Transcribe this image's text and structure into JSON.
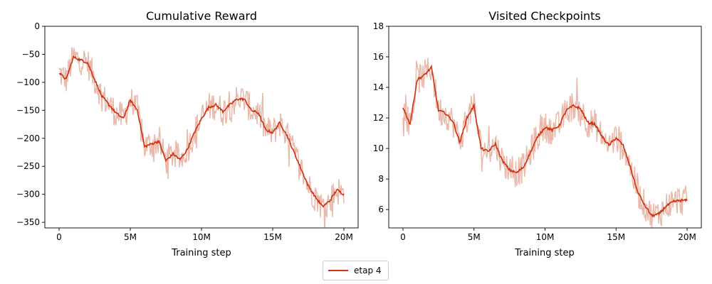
{
  "colors": {
    "raw": "#ebb9ab",
    "smooth": "#cc3311"
  },
  "legend": {
    "label": "etap 4",
    "position": "bottom-center"
  },
  "chart_data": [
    {
      "type": "line",
      "title": "Cumulative Reward",
      "xlabel": "Training step",
      "ylabel": "",
      "xlim": [
        -1000000,
        21000000
      ],
      "ylim": [
        -360,
        0
      ],
      "xticks": [
        0,
        5000000,
        10000000,
        15000000,
        20000000
      ],
      "xticklabels": [
        "0",
        "5M",
        "10M",
        "15M",
        "20M"
      ],
      "yticks": [
        0,
        -50,
        -100,
        -150,
        -200,
        -250,
        -300,
        -350
      ],
      "yticklabels": [
        "0",
        "−50",
        "−100",
        "−150",
        "−200",
        "−250",
        "−300",
        "−350"
      ],
      "grid": false,
      "series": [
        {
          "name": "etap 4",
          "x": [
            0,
            500000,
            1000000,
            1500000,
            2000000,
            2500000,
            3000000,
            3500000,
            4000000,
            4500000,
            5000000,
            5500000,
            6000000,
            6500000,
            7000000,
            7500000,
            8000000,
            8500000,
            9000000,
            9500000,
            10000000,
            10500000,
            11000000,
            11500000,
            12000000,
            12500000,
            13000000,
            13500000,
            14000000,
            14500000,
            15000000,
            15500000,
            16000000,
            16500000,
            17000000,
            17500000,
            18000000,
            18500000,
            19000000,
            19500000,
            20000000
          ],
          "values": [
            -83,
            -95,
            -55,
            -60,
            -65,
            -95,
            -125,
            -140,
            -155,
            -165,
            -132,
            -150,
            -215,
            -210,
            -205,
            -240,
            -228,
            -238,
            -220,
            -190,
            -165,
            -145,
            -140,
            -152,
            -140,
            -130,
            -130,
            -150,
            -155,
            -185,
            -190,
            -172,
            -195,
            -225,
            -255,
            -285,
            -305,
            -322,
            -312,
            -292,
            -300
          ]
        }
      ]
    },
    {
      "type": "line",
      "title": "Visited Checkpoints",
      "xlabel": "Training step",
      "ylabel": "",
      "xlim": [
        -1000000,
        21000000
      ],
      "ylim": [
        4.8,
        18
      ],
      "xticks": [
        0,
        5000000,
        10000000,
        15000000,
        20000000
      ],
      "xticklabels": [
        "0",
        "5M",
        "10M",
        "15M",
        "20M"
      ],
      "yticks": [
        6,
        8,
        10,
        12,
        14,
        16,
        18
      ],
      "yticklabels": [
        "6",
        "8",
        "10",
        "12",
        "14",
        "16",
        "18"
      ],
      "grid": false,
      "series": [
        {
          "name": "etap 4",
          "x": [
            0,
            500000,
            1000000,
            1500000,
            2000000,
            2500000,
            3000000,
            3500000,
            4000000,
            4500000,
            5000000,
            5500000,
            6000000,
            6500000,
            7000000,
            7500000,
            8000000,
            8500000,
            9000000,
            9500000,
            10000000,
            10500000,
            11000000,
            11500000,
            12000000,
            12500000,
            13000000,
            13500000,
            14000000,
            14500000,
            15000000,
            15500000,
            16000000,
            16500000,
            17000000,
            17500000,
            18000000,
            18500000,
            19000000,
            19500000,
            20000000
          ],
          "values": [
            12.7,
            11.6,
            14.5,
            14.8,
            15.3,
            12.5,
            12.3,
            11.8,
            10.4,
            12.0,
            12.8,
            10.0,
            9.8,
            10.3,
            9.2,
            8.6,
            8.4,
            8.8,
            9.8,
            10.8,
            11.4,
            11.2,
            11.5,
            12.5,
            12.8,
            12.6,
            11.7,
            11.6,
            10.8,
            10.2,
            10.7,
            10.2,
            8.8,
            7.2,
            6.3,
            5.6,
            5.7,
            6.2,
            6.5,
            6.6,
            6.6
          ]
        }
      ]
    }
  ]
}
